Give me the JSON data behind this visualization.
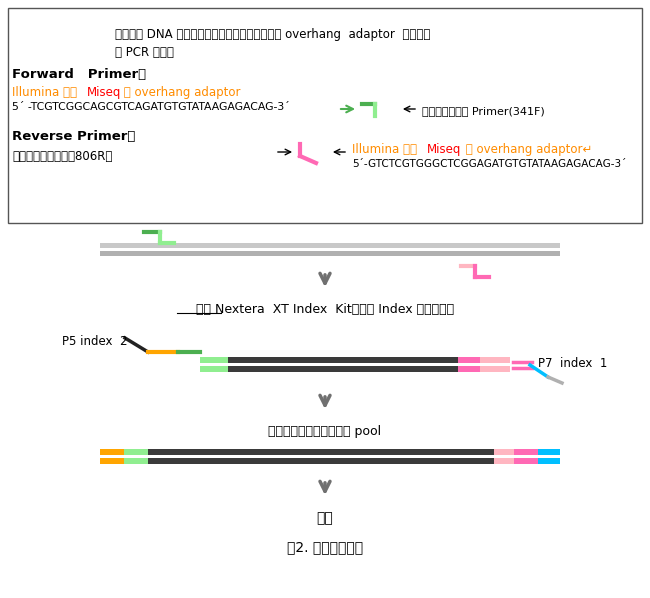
{
  "title": "图2. 文库制备流程",
  "bg_color": "#ffffff",
  "box_text_line1": "以基因组 DNA 为模板，使用目的区域特异且添加 overhang  adaptor  的引物进",
  "box_text_line2": "行 PCR 扩增。",
  "forward_primer_label": "Forward   Primer：",
  "seq_fwd": "5´ -TCGTCGGCAGCGTCAGATGTGTATAAGAGACAG-3´",
  "target_fwd": "目的区域特异的 Primer(341F)",
  "reverse_primer_label": "Reverse Primer：",
  "target_rev": "目的区域特异引物（806R）",
  "seq_rev": "5´-GTCTCGTGGGCTCGGAGATGTGTATAAGAGACAG-3´",
  "nextera_text": "使用 Nextera  XT Index  Kit，连接 Index 引物和接头",
  "p5_label": "P5 index  2",
  "p7_label": "P7  index  1",
  "pool_text": "文库定量、均一化、构成 pool",
  "seq_text": "测序",
  "green_color": "#4CAF50",
  "light_green_color": "#90EE90",
  "pink_color": "#FF69B4",
  "light_pink_color": "#FFB6C1",
  "dark_color": "#3A3A3A",
  "gray_color": "#A0A0A0",
  "orange_color": "#FFA500",
  "blue_color": "#00BFFF",
  "arrow_color": "#707070",
  "illumina_color": "#FF8C00",
  "miseq_color": "#FF0000"
}
